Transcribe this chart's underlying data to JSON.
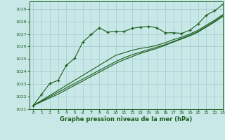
{
  "title": "Graphe pression niveau de la mer (hPa)",
  "bg_color": "#c8e8e8",
  "grid_color": "#a0cccc",
  "line_color": "#1a5c1a",
  "xlim": [
    -0.5,
    23
  ],
  "ylim": [
    1021.0,
    1029.6
  ],
  "yticks": [
    1021,
    1022,
    1023,
    1024,
    1025,
    1026,
    1027,
    1028,
    1029
  ],
  "xticks": [
    0,
    1,
    2,
    3,
    4,
    5,
    6,
    7,
    8,
    9,
    10,
    11,
    12,
    13,
    14,
    15,
    16,
    17,
    18,
    19,
    20,
    21,
    22,
    23
  ],
  "line_main_y": [
    1021.3,
    1022.2,
    1023.05,
    1023.3,
    1024.5,
    1025.05,
    1026.35,
    1026.95,
    1027.5,
    1027.15,
    1027.2,
    1027.2,
    1027.45,
    1027.55,
    1027.6,
    1027.5,
    1027.1,
    1027.1,
    1027.05,
    1027.3,
    1027.8,
    1028.5,
    1028.85,
    1029.35
  ],
  "line2_y": [
    1021.3,
    1021.7,
    1022.1,
    1022.5,
    1022.9,
    1023.3,
    1023.7,
    1024.1,
    1024.5,
    1024.9,
    1025.3,
    1025.5,
    1025.7,
    1025.85,
    1025.95,
    1026.1,
    1026.3,
    1026.55,
    1026.75,
    1027.0,
    1027.3,
    1027.7,
    1028.1,
    1028.55
  ],
  "line3_y": [
    1021.3,
    1021.65,
    1022.0,
    1022.35,
    1022.7,
    1023.05,
    1023.4,
    1023.75,
    1024.1,
    1024.45,
    1024.8,
    1025.1,
    1025.35,
    1025.55,
    1025.75,
    1025.95,
    1026.15,
    1026.4,
    1026.65,
    1026.9,
    1027.2,
    1027.6,
    1028.0,
    1028.45
  ],
  "line4_y": [
    1021.3,
    1021.6,
    1021.9,
    1022.2,
    1022.55,
    1022.9,
    1023.25,
    1023.6,
    1023.95,
    1024.3,
    1024.65,
    1024.95,
    1025.2,
    1025.45,
    1025.65,
    1025.85,
    1026.1,
    1026.35,
    1026.6,
    1026.85,
    1027.15,
    1027.55,
    1027.95,
    1028.4
  ]
}
